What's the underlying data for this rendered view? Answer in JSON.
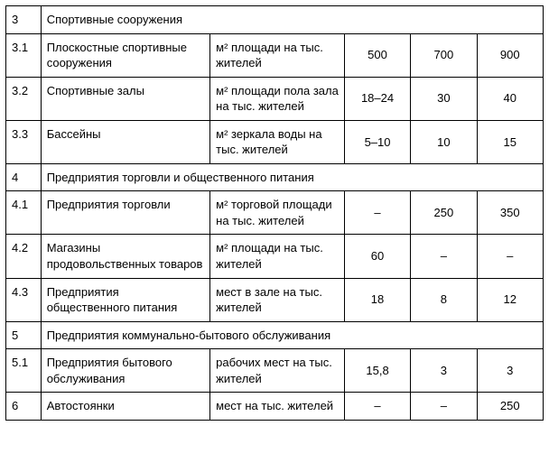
{
  "table": {
    "columns_count": 6,
    "colors": {
      "border": "#000000",
      "background": "#ffffff",
      "text": "#000000"
    },
    "font_size_pt": 10,
    "rows": [
      {
        "type": "section",
        "num": "3",
        "title": "Спортивные сооружения"
      },
      {
        "type": "item",
        "num": "3.1",
        "name": "Плоскостные спортивные со­оружения",
        "unit": "м² площади на тыс. жителей",
        "v1": "500",
        "v2": "700",
        "v3": "900"
      },
      {
        "type": "item",
        "num": "3.2",
        "name": "Спортивные залы",
        "unit": "м² площади пола зала на тыс. жителей",
        "v1": "18–24",
        "v2": "30",
        "v3": "40"
      },
      {
        "type": "item",
        "num": "3.3",
        "name": "Бассейны",
        "unit": "м² зеркала воды на тыс. жителей",
        "v1": "5–10",
        "v2": "10",
        "v3": "15"
      },
      {
        "type": "section",
        "num": "4",
        "title": "Предприятия торговли и общественного питания"
      },
      {
        "type": "item",
        "num": "4.1",
        "name": "Предприятия торговли",
        "unit": "м² торговой площади на тыс. жителей",
        "v1": "–",
        "v2": "250",
        "v3": "350"
      },
      {
        "type": "item",
        "num": "4.2",
        "name": "Магазины продовольственных товаров",
        "unit": "м² площади на тыс. жителей",
        "v1": "60",
        "v2": "–",
        "v3": "–"
      },
      {
        "type": "item",
        "num": "4.3",
        "name": "Предприятия общественного пи­тания",
        "unit": "мест в зале на тыс. жителей",
        "v1": "18",
        "v2": "8",
        "v3": "12"
      },
      {
        "type": "section",
        "num": "5",
        "title": "Предприятия коммунально-бытового обслуживания"
      },
      {
        "type": "item",
        "num": "5.1",
        "name": "Предприятия бытового обслу­живания",
        "unit": "рабочих мест на тыс. жителей",
        "v1": "15,8",
        "v2": "3",
        "v3": "3"
      },
      {
        "type": "item",
        "num": "6",
        "name": "Автостоянки",
        "unit": "мест на тыс. жителей",
        "v1": "–",
        "v2": "–",
        "v3": "250"
      }
    ]
  }
}
